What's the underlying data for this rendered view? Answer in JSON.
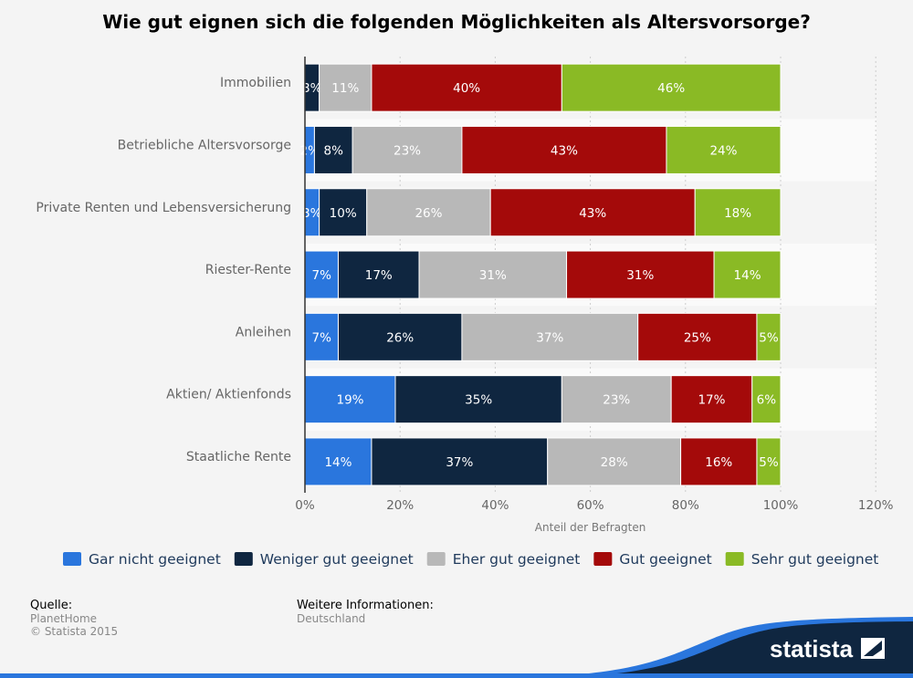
{
  "chart_data": {
    "type": "bar",
    "orientation": "horizontal",
    "stacked": true,
    "title": "Wie gut eignen sich die folgenden Möglichkeiten als Altersvorsorge?",
    "xlabel": "Anteil der Befragten",
    "ylabel": "",
    "xlim": [
      0,
      120
    ],
    "xticks": [
      "0%",
      "20%",
      "40%",
      "60%",
      "80%",
      "100%",
      "120%"
    ],
    "grid": true,
    "legend_position": "bottom",
    "categories": [
      "Immobilien",
      "Betriebliche Altersvorsorge",
      "Private Renten und Lebensversicherung",
      "Riester-Rente",
      "Anleihen",
      "Aktien/ Aktienfonds",
      "Staatliche Rente"
    ],
    "series": [
      {
        "name": "Gar nicht geeignet",
        "color": "#2a76dd",
        "values": [
          0,
          2,
          3,
          7,
          7,
          19,
          14
        ]
      },
      {
        "name": "Weniger gut geeignet",
        "color": "#0f2640",
        "values": [
          3,
          8,
          10,
          17,
          26,
          35,
          37
        ]
      },
      {
        "name": "Eher gut geeignet",
        "color": "#b8b8b8",
        "values": [
          11,
          23,
          26,
          31,
          37,
          23,
          28
        ]
      },
      {
        "name": "Gut geeignet",
        "color": "#a40a0a",
        "values": [
          40,
          43,
          43,
          31,
          25,
          17,
          16
        ]
      },
      {
        "name": "Sehr gut geeignet",
        "color": "#8aba25",
        "values": [
          46,
          24,
          18,
          14,
          5,
          6,
          5
        ]
      }
    ]
  },
  "footer": {
    "source_label": "Quelle:",
    "source": "PlanetHome",
    "copyright": "© Statista 2015",
    "info_label": "Weitere Informationen:",
    "info": "Deutschland",
    "logo": "statista"
  }
}
